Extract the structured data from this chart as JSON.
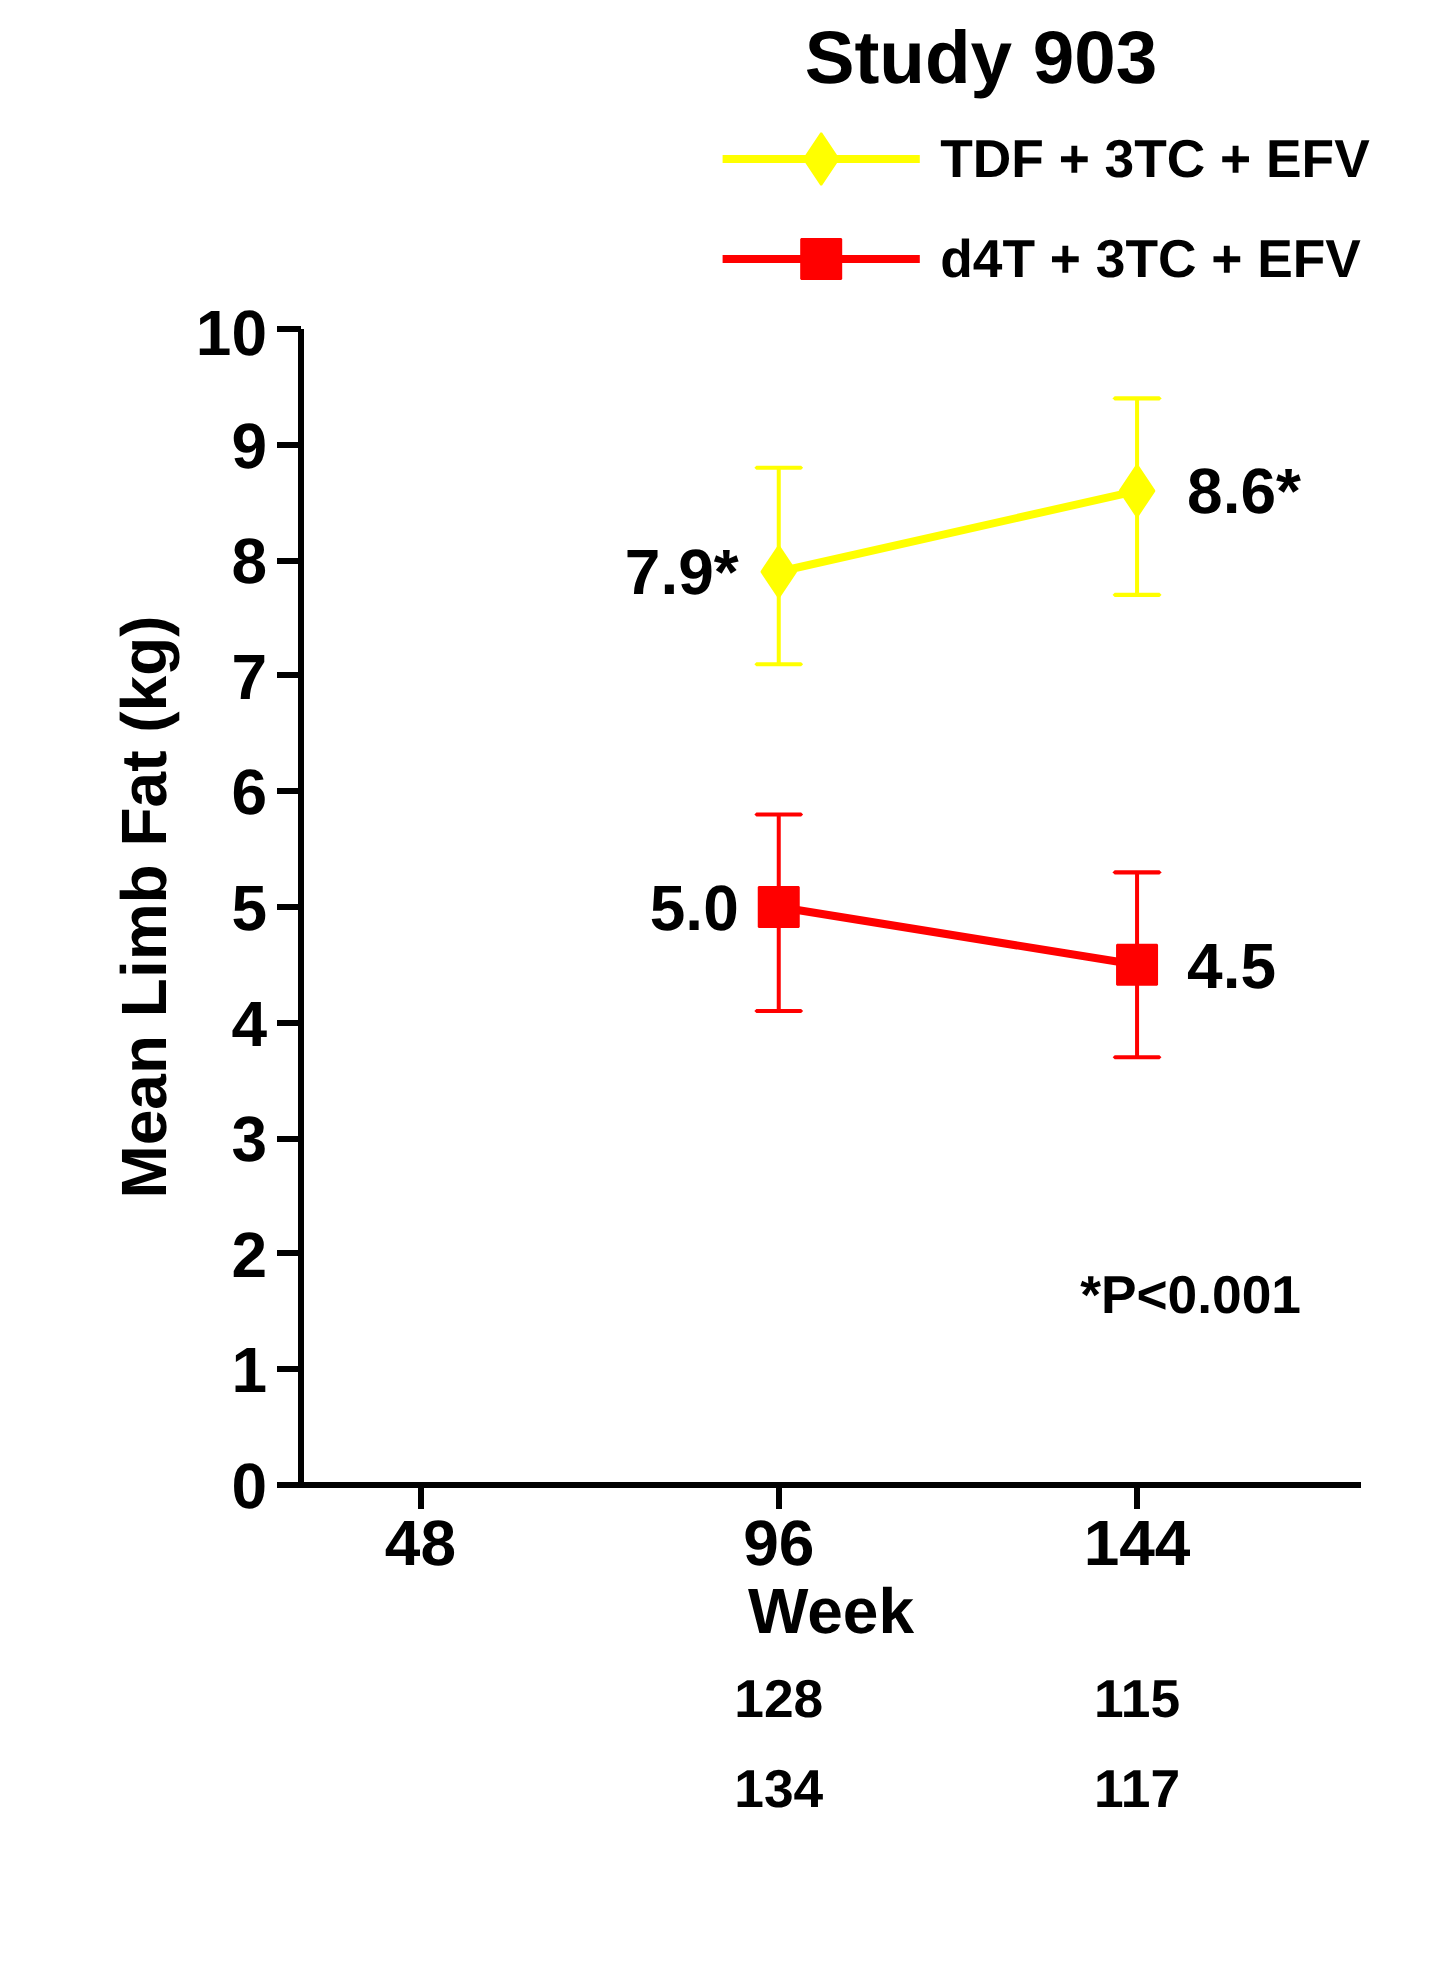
{
  "chart_data": {
    "type": "line",
    "title": "Study 903",
    "xlabel": "Week",
    "ylabel": "Mean Limb Fat (kg)",
    "x": [
      96,
      144
    ],
    "series": [
      {
        "name": "TDF + 3TC + EFV",
        "color": "#ffff00",
        "marker": "diamond",
        "values": [
          7.9,
          8.6
        ],
        "errors": [
          [
            7.1,
            8.8
          ],
          [
            7.7,
            9.4
          ]
        ],
        "value_labels": [
          "7.9*",
          "8.6*"
        ]
      },
      {
        "name": "d4T + 3TC + EFV",
        "color": "#ff0000",
        "marker": "square",
        "values": [
          5.0,
          4.5
        ],
        "errors": [
          [
            4.1,
            5.8
          ],
          [
            3.7,
            5.3
          ]
        ],
        "value_labels": [
          "5.0",
          "4.5"
        ]
      }
    ],
    "xlim": [
      32,
      174
    ],
    "xticks": [
      48,
      96,
      144
    ],
    "ylim": [
      0,
      10
    ],
    "yticks": [
      0,
      1,
      2,
      3,
      4,
      5,
      6,
      7,
      8,
      9,
      10
    ],
    "grid": false,
    "legend": "top",
    "annotations": [
      "*P<0.001",
      "128",
      "115",
      "134",
      "117"
    ]
  }
}
